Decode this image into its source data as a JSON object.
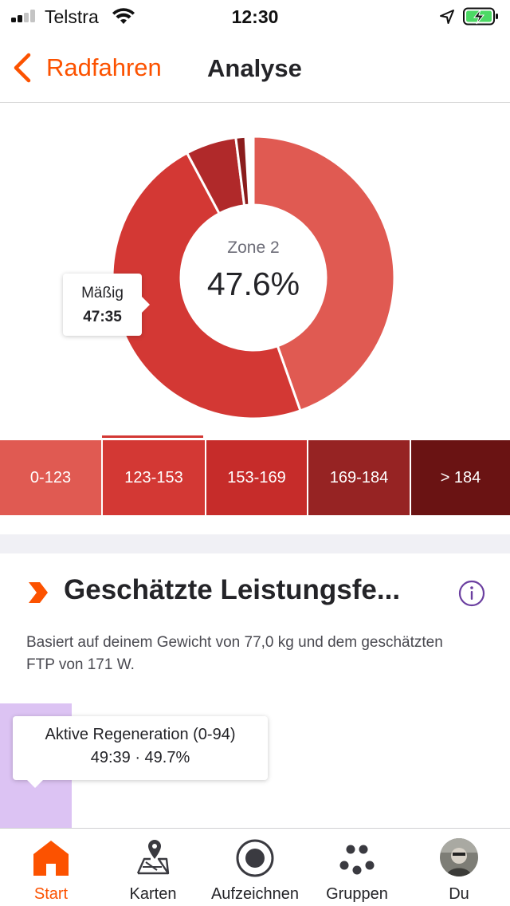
{
  "status_bar": {
    "carrier": "Telstra",
    "time": "12:30"
  },
  "nav": {
    "back_label": "Radfahren",
    "title": "Analyse"
  },
  "heart_rate": {
    "center_zone_label": "Zone 2",
    "center_percent": "47.6%",
    "tooltip": {
      "label": "Mäßig",
      "value": "47:35"
    },
    "selected_zone_index": 1,
    "donut_slices": [
      {
        "zone": "0-123",
        "fraction": 0.446,
        "color": "#e05a52"
      },
      {
        "zone": "123-153",
        "fraction": 0.476,
        "color": "#d33834"
      },
      {
        "zone": "153-169",
        "fraction": 0.0,
        "color": "#c62c2a"
      },
      {
        "zone": "169-184",
        "fraction": 0.058,
        "color": "#b0292a"
      },
      {
        "zone": "> 184",
        "fraction": 0.011,
        "color": "#8a1c1c"
      }
    ],
    "zones": [
      {
        "label": "0-123",
        "color": "#e05a52"
      },
      {
        "label": "123-153",
        "color": "#d33834"
      },
      {
        "label": "153-169",
        "color": "#c62c2a"
      },
      {
        "label": "169-184",
        "color": "#962323"
      },
      {
        "label": "> 184",
        "color": "#6a1313"
      }
    ]
  },
  "power": {
    "title": "Geschätzte Leistungsfe...",
    "description": "Basiert auf deinem Gewicht von 77,0 kg und dem geschätzten FTP von 171 W.",
    "tooltip": {
      "label": "Aktive Regeneration (0-94)",
      "value": "49:39 · 49.7%"
    },
    "bar_color": "#dcc3f3"
  },
  "tabs": [
    {
      "label": "Start",
      "icon": "home-icon",
      "active": true
    },
    {
      "label": "Karten",
      "icon": "map-icon",
      "active": false
    },
    {
      "label": "Aufzeichnen",
      "icon": "record-icon",
      "active": false
    },
    {
      "label": "Gruppen",
      "icon": "groups-icon",
      "active": false
    },
    {
      "label": "Du",
      "icon": "avatar",
      "active": false
    }
  ],
  "colors": {
    "accent": "#fc5200",
    "info": "#6b3fa0"
  }
}
